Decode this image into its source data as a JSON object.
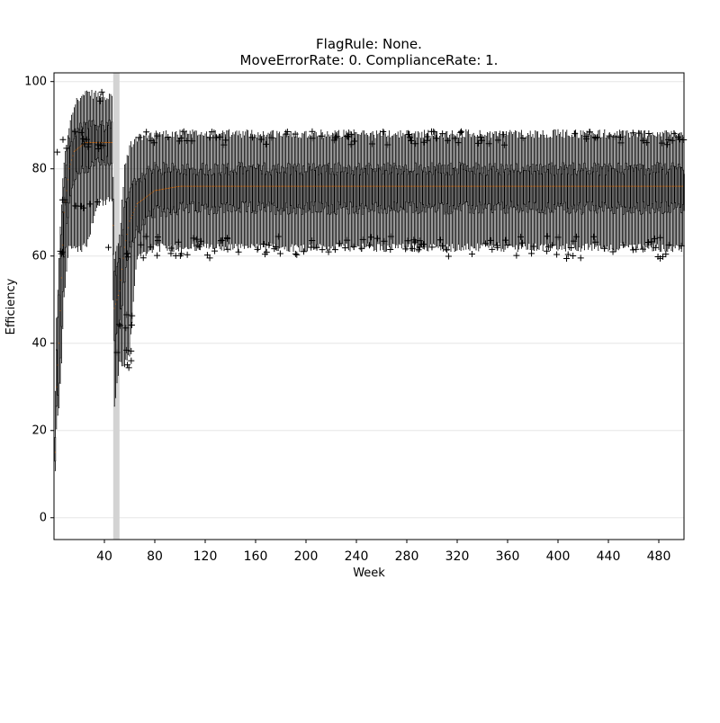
{
  "chart_data": {
    "type": "box",
    "title_lines": [
      "FlagRule: None.",
      "MoveErrorRate: 0. ComplianceRate: 1."
    ],
    "xlabel": "Week",
    "ylabel": "Efficiency",
    "xlim": [
      0,
      500
    ],
    "ylim": [
      -5,
      102
    ],
    "xticks": [
      40,
      80,
      120,
      160,
      200,
      240,
      280,
      320,
      360,
      400,
      440,
      480
    ],
    "yticks": [
      0,
      20,
      40,
      60,
      80,
      100
    ],
    "grid": "horizontal",
    "shaded_span": [
      47,
      52
    ],
    "colors": {
      "box": "#000000",
      "median": "#ff7f0e",
      "shade": "#d3d3d3",
      "grid": "#e6e6e6"
    },
    "profile_points": [
      {
        "week": 0,
        "q1": 0,
        "med": 0,
        "q3": 0,
        "lo": 0,
        "hi": 11
      },
      {
        "week": 2,
        "q1": 25,
        "med": 30,
        "q3": 38,
        "lo": 21,
        "hi": 45
      },
      {
        "week": 4,
        "q1": 30,
        "med": 40,
        "q3": 52,
        "lo": 25,
        "hi": 60
      },
      {
        "week": 6,
        "q1": 45,
        "med": 55,
        "q3": 65,
        "lo": 35,
        "hi": 72
      },
      {
        "week": 8,
        "q1": 60,
        "med": 70,
        "q3": 76,
        "lo": 50,
        "hi": 82
      },
      {
        "week": 12,
        "q1": 72,
        "med": 80,
        "q3": 86,
        "lo": 62,
        "hi": 90
      },
      {
        "week": 16,
        "q1": 78,
        "med": 84,
        "q3": 88,
        "lo": 62,
        "hi": 95
      },
      {
        "week": 25,
        "q1": 80,
        "med": 86,
        "q3": 90,
        "lo": 62,
        "hi": 97
      },
      {
        "week": 35,
        "q1": 82,
        "med": 86,
        "q3": 90,
        "lo": 72,
        "hi": 97
      },
      {
        "week": 46,
        "q1": 82,
        "med": 86,
        "q3": 90,
        "lo": 73,
        "hi": 96
      },
      {
        "week": 48,
        "q1": 40,
        "med": 48,
        "q3": 56,
        "lo": 26,
        "hi": 60
      },
      {
        "week": 52,
        "q1": 45,
        "med": 52,
        "q3": 60,
        "lo": 35,
        "hi": 64
      },
      {
        "week": 56,
        "q1": 55,
        "med": 62,
        "q3": 70,
        "lo": 35,
        "hi": 80
      },
      {
        "week": 60,
        "q1": 62,
        "med": 68,
        "q3": 74,
        "lo": 38,
        "hi": 85
      },
      {
        "week": 66,
        "q1": 66,
        "med": 72,
        "q3": 78,
        "lo": 60,
        "hi": 87
      },
      {
        "week": 80,
        "q1": 70,
        "med": 75,
        "q3": 80,
        "lo": 62,
        "hi": 88
      },
      {
        "week": 100,
        "q1": 71,
        "med": 76,
        "q3": 80,
        "lo": 62,
        "hi": 88
      },
      {
        "week": 500,
        "q1": 71,
        "med": 76,
        "q3": 80,
        "lo": 62,
        "hi": 88
      }
    ],
    "outlier_bands": [
      {
        "weeks": [
          2,
          44
        ],
        "values": [
          84,
          85,
          86,
          87,
          88,
          89,
          96,
          97,
          73,
          72,
          62,
          61,
          71
        ]
      },
      {
        "weeks": [
          50,
          62
        ],
        "values": [
          35,
          36,
          37,
          38,
          44,
          46,
          60,
          66
        ]
      },
      {
        "weeks": [
          66,
          500
        ],
        "values": [
          87,
          88,
          87.5,
          62,
          63,
          61.5,
          60,
          86,
          64
        ]
      }
    ]
  }
}
